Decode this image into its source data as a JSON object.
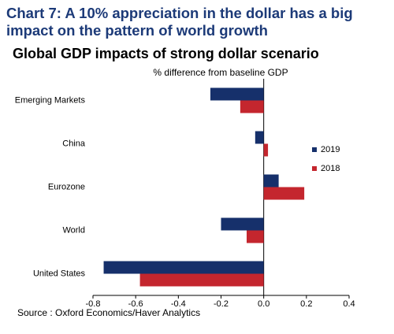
{
  "chart_data": {
    "type": "hbar",
    "title": "Chart 7: A 10% appreciation in the dollar has a big impact on the pattern of world growth",
    "subtitle": "Global GDP impacts of strong dollar scenario",
    "x_label": "% difference from baseline GDP",
    "source": "Source : Oxford Economics/Haver Analytics",
    "categories": [
      "Emerging Markets",
      "China",
      "Eurozone",
      "World",
      "United States"
    ],
    "series": [
      {
        "name": "2019",
        "color": "#16306b",
        "values": [
          -0.25,
          -0.04,
          0.07,
          -0.2,
          -0.75
        ]
      },
      {
        "name": "2018",
        "color": "#c4262e",
        "values": [
          -0.11,
          0.02,
          0.19,
          -0.08,
          -0.58
        ]
      }
    ],
    "xlim": [
      -0.8,
      0.4
    ],
    "xticks": [
      -0.8,
      -0.6,
      -0.4,
      -0.2,
      {
        "value": 0,
        "label": "0.0"
      },
      0.2,
      0.4
    ],
    "legend": "right"
  }
}
